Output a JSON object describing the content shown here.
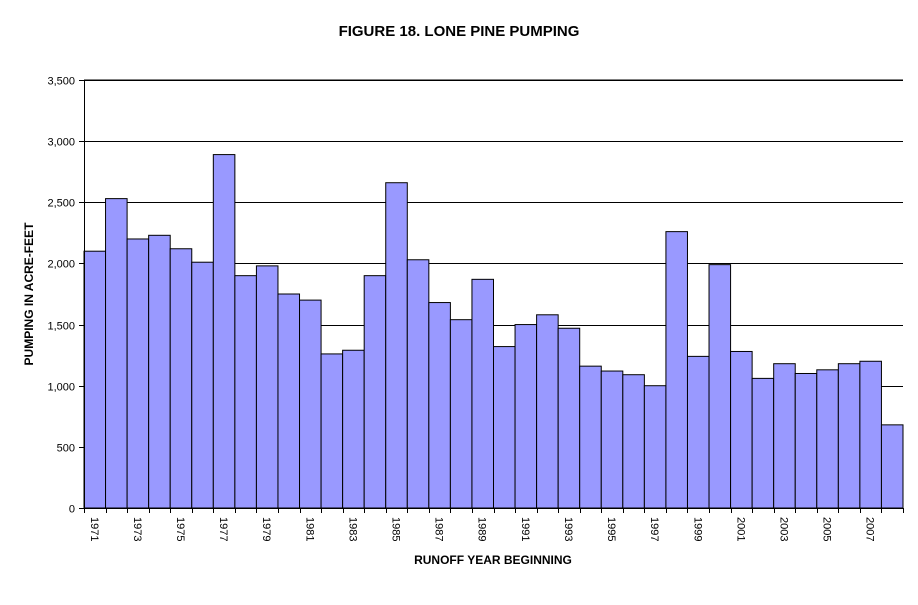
{
  "chart_data": {
    "type": "bar",
    "title": "FIGURE 18. LONE PINE PUMPING",
    "xlabel": "RUNOFF YEAR BEGINNING",
    "ylabel": "PUMPING IN ACRE-FEET",
    "ylim": [
      0,
      3500
    ],
    "yticks": [
      0,
      500,
      1000,
      1500,
      2000,
      2500,
      3000,
      3500
    ],
    "ytick_labels": [
      "0",
      "500",
      "1,000",
      "1,500",
      "2,000",
      "2,500",
      "3,000",
      "3,500"
    ],
    "categories": [
      "1971",
      "1972",
      "1973",
      "1974",
      "1975",
      "1976",
      "1977",
      "1978",
      "1979",
      "1980",
      "1981",
      "1982",
      "1983",
      "1984",
      "1985",
      "1986",
      "1987",
      "1988",
      "1989",
      "1990",
      "1991",
      "1992",
      "1993",
      "1994",
      "1995",
      "1996",
      "1997",
      "1998",
      "1999",
      "2000",
      "2001",
      "2002",
      "2003",
      "2004",
      "2005",
      "2006",
      "2007",
      "2008"
    ],
    "xtick_labels": [
      "1971",
      "1973",
      "1975",
      "1977",
      "1979",
      "1981",
      "1983",
      "1985",
      "1987",
      "1989",
      "1991",
      "1993",
      "1995",
      "1997",
      "1999",
      "2001",
      "2003",
      "2005",
      "2007"
    ],
    "values": [
      2100,
      2530,
      2200,
      2230,
      2120,
      2010,
      2890,
      1900,
      1980,
      1750,
      1700,
      1260,
      1290,
      1900,
      2660,
      2030,
      1680,
      1540,
      1870,
      1320,
      1500,
      1580,
      1470,
      1160,
      1120,
      1090,
      1000,
      2260,
      1240,
      1990,
      1280,
      1060,
      1180,
      1100,
      1130,
      1180,
      1200,
      680
    ],
    "bar_color": "#9999ff",
    "bar_edge_color": "#000000",
    "grid": true,
    "legend": "none"
  }
}
